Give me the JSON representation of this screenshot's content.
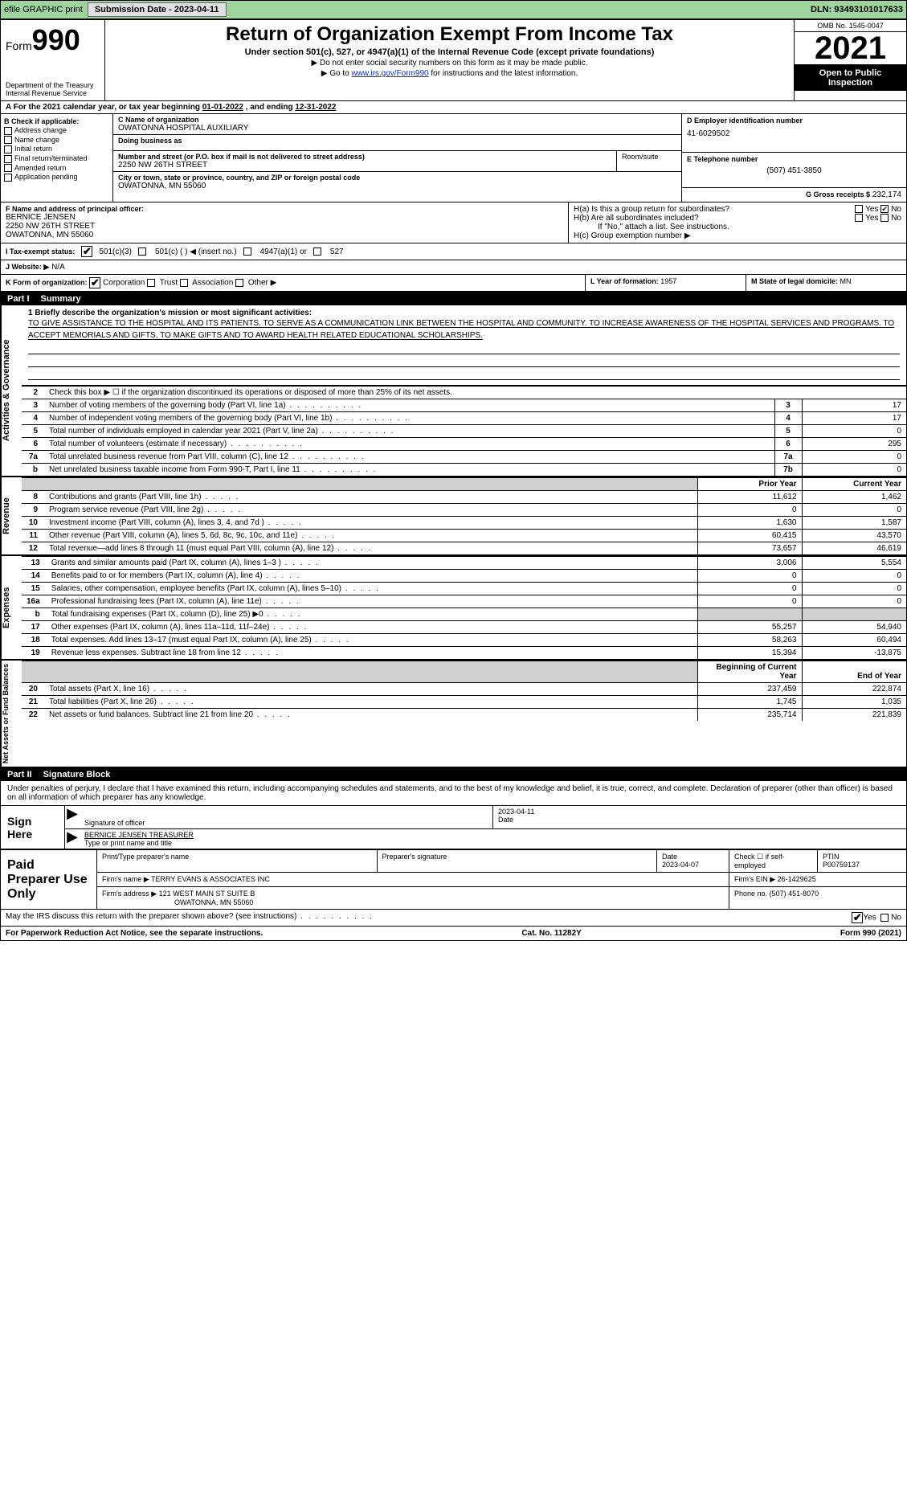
{
  "topbar": {
    "efile_label": "efile GRAPHIC print",
    "submission_label": "Submission Date - 2023-04-11",
    "dln_label": "DLN: 93493101017633"
  },
  "header": {
    "form_prefix": "Form",
    "form_number": "990",
    "dept": "Department of the Treasury",
    "irs": "Internal Revenue Service",
    "title": "Return of Organization Exempt From Income Tax",
    "subtitle": "Under section 501(c), 527, or 4947(a)(1) of the Internal Revenue Code (except private foundations)",
    "note1": "▶ Do not enter social security numbers on this form as it may be made public.",
    "note2_pre": "▶ Go to ",
    "note2_link": "www.irs.gov/Form990",
    "note2_post": " for instructions and the latest information.",
    "omb": "OMB No. 1545-0047",
    "year": "2021",
    "open": "Open to Public Inspection"
  },
  "period": {
    "label_a": "A For the 2021 calendar year, or tax year beginning ",
    "begin": "01-01-2022",
    "mid": "  , and ending ",
    "end": "12-31-2022"
  },
  "boxB": {
    "heading": "B Check if applicable:",
    "addr_change": "Address change",
    "name_change": "Name change",
    "initial": "Initial return",
    "final": "Final return/terminated",
    "amended": "Amended return",
    "app_pending": "Application pending"
  },
  "boxC": {
    "name_label": "C Name of organization",
    "name": "OWATONNA HOSPITAL AUXILIARY",
    "dba_label": "Doing business as",
    "street_label": "Number and street (or P.O. box if mail is not delivered to street address)",
    "street": "2250 NW 26TH STREET",
    "room_label": "Room/suite",
    "city_label": "City or town, state or province, country, and ZIP or foreign postal code",
    "city": "OWATONNA, MN  55060"
  },
  "boxD": {
    "ein_label": "D Employer identification number",
    "ein": "41-6029502",
    "tel_label": "E Telephone number",
    "tel": "(507) 451-3850",
    "gross_label": "G Gross receipts $",
    "gross": "232,174"
  },
  "boxF": {
    "label": "F Name and address of principal officer:",
    "name": "BERNICE JENSEN",
    "street": "2250 NW 26TH STREET",
    "city": "OWATONNA, MN  55060"
  },
  "boxH": {
    "ha_label": "H(a)  Is this a group return for subordinates?",
    "hb_label": "H(b)  Are all subordinates included?",
    "h_note": "If \"No,\" attach a list. See instructions.",
    "hc_label": "H(c)  Group exemption number ▶",
    "yes": "Yes",
    "no": "No"
  },
  "boxI": {
    "label": "I  Tax-exempt status:",
    "o501c3": "501(c)(3)",
    "o501c": "501(c) (   ) ◀ (insert no.)",
    "o4947": "4947(a)(1) or",
    "o527": "527"
  },
  "boxJ": {
    "label": "J  Website: ▶",
    "value": "  N/A"
  },
  "boxK": {
    "label": "K Form of organization:",
    "corp": "Corporation",
    "trust": "Trust",
    "assoc": "Association",
    "other": "Other ▶"
  },
  "boxL": {
    "label": "L Year of formation: ",
    "value": "1957"
  },
  "boxM": {
    "label": "M State of legal domicile: ",
    "value": "MN"
  },
  "partI": {
    "num": "Part I",
    "title": "Summary"
  },
  "mission": {
    "q1": "1  Briefly describe the organization's mission or most significant activities:",
    "text": "TO GIVE ASSISTANCE TO THE HOSPITAL AND ITS PATIENTS. TO SERVE AS A COMMUNICATION LINK BETWEEN THE HOSPITAL AND COMMUNITY. TO INCREASE AWARENESS OF THE HOSPITAL SERVICES AND PROGRAMS. TO ACCEPT MEMORIALS AND GIFTS, TO MAKE GIFTS AND TO AWARD HEALTH RELATED EDUCATIONAL SCHOLARSHIPS."
  },
  "gov_lines": {
    "l2": "Check this box ▶ ☐  if the organization discontinued its operations or disposed of more than 25% of its net assets.",
    "rows": [
      {
        "n": "3",
        "t": "Number of voting members of the governing body (Part VI, line 1a)",
        "b": "3",
        "v": "17"
      },
      {
        "n": "4",
        "t": "Number of independent voting members of the governing body (Part VI, line 1b)",
        "b": "4",
        "v": "17"
      },
      {
        "n": "5",
        "t": "Total number of individuals employed in calendar year 2021 (Part V, line 2a)",
        "b": "5",
        "v": "0"
      },
      {
        "n": "6",
        "t": "Total number of volunteers (estimate if necessary)",
        "b": "6",
        "v": "295"
      },
      {
        "n": "7a",
        "t": "Total unrelated business revenue from Part VIII, column (C), line 12",
        "b": "7a",
        "v": "0"
      },
      {
        "n": "b",
        "t": "Net unrelated business taxable income from Form 990-T, Part I, line 11",
        "b": "7b",
        "v": "0"
      }
    ]
  },
  "cols": {
    "prior": "Prior Year",
    "current": "Current Year",
    "begin": "Beginning of Current Year",
    "end": "End of Year"
  },
  "revenue": [
    {
      "n": "8",
      "t": "Contributions and grants (Part VIII, line 1h)",
      "p": "11,612",
      "c": "1,462"
    },
    {
      "n": "9",
      "t": "Program service revenue (Part VIII, line 2g)",
      "p": "0",
      "c": "0"
    },
    {
      "n": "10",
      "t": "Investment income (Part VIII, column (A), lines 3, 4, and 7d )",
      "p": "1,630",
      "c": "1,587"
    },
    {
      "n": "11",
      "t": "Other revenue (Part VIII, column (A), lines 5, 6d, 8c, 9c, 10c, and 11e)",
      "p": "60,415",
      "c": "43,570"
    },
    {
      "n": "12",
      "t": "Total revenue—add lines 8 through 11 (must equal Part VIII, column (A), line 12)",
      "p": "73,657",
      "c": "46,619"
    }
  ],
  "expenses": [
    {
      "n": "13",
      "t": "Grants and similar amounts paid (Part IX, column (A), lines 1–3 )",
      "p": "3,006",
      "c": "5,554"
    },
    {
      "n": "14",
      "t": "Benefits paid to or for members (Part IX, column (A), line 4)",
      "p": "0",
      "c": "0"
    },
    {
      "n": "15",
      "t": "Salaries, other compensation, employee benefits (Part IX, column (A), lines 5–10)",
      "p": "0",
      "c": "0"
    },
    {
      "n": "16a",
      "t": "Professional fundraising fees (Part IX, column (A), line 11e)",
      "p": "0",
      "c": "0"
    },
    {
      "n": "b",
      "t": "Total fundraising expenses (Part IX, column (D), line 25) ▶0",
      "p": "",
      "c": "",
      "shaded": true
    },
    {
      "n": "17",
      "t": "Other expenses (Part IX, column (A), lines 11a–11d, 11f–24e)",
      "p": "55,257",
      "c": "54,940"
    },
    {
      "n": "18",
      "t": "Total expenses. Add lines 13–17 (must equal Part IX, column (A), line 25)",
      "p": "58,263",
      "c": "60,494"
    },
    {
      "n": "19",
      "t": "Revenue less expenses. Subtract line 18 from line 12",
      "p": "15,394",
      "c": "-13,875"
    }
  ],
  "netassets": [
    {
      "n": "20",
      "t": "Total assets (Part X, line 16)",
      "p": "237,459",
      "c": "222,874"
    },
    {
      "n": "21",
      "t": "Total liabilities (Part X, line 26)",
      "p": "1,745",
      "c": "1,035"
    },
    {
      "n": "22",
      "t": "Net assets or fund balances. Subtract line 21 from line 20",
      "p": "235,714",
      "c": "221,839"
    }
  ],
  "side": {
    "gov": "Activities & Governance",
    "rev": "Revenue",
    "exp": "Expenses",
    "net": "Net Assets or Fund Balances"
  },
  "partII": {
    "num": "Part II",
    "title": "Signature Block"
  },
  "penalties": "Under penalties of perjury, I declare that I have examined this return, including accompanying schedules and statements, and to the best of my knowledge and belief, it is true, correct, and complete. Declaration of preparer (other than officer) is based on all information of which preparer has any knowledge.",
  "sign": {
    "here": "Sign Here",
    "sig_label": "Signature of officer",
    "date_label": "Date",
    "date": "2023-04-11",
    "name": "BERNICE JENSEN  TREASURER",
    "name_label": "Type or print name and title"
  },
  "prep": {
    "label": "Paid Preparer Use Only",
    "print_label": "Print/Type preparer's name",
    "sig_label": "Preparer's signature",
    "date_label": "Date",
    "date": "2023-04-07",
    "check_label": "Check ☐ if self-employed",
    "ptin_label": "PTIN",
    "ptin": "P00759137",
    "firm_name_label": "Firm's name    ▶",
    "firm_name": "TERRY EVANS & ASSOCIATES INC",
    "firm_ein_label": "Firm's EIN ▶",
    "firm_ein": "26-1429625",
    "firm_addr_label": "Firm's address ▶",
    "firm_addr1": "121 WEST MAIN ST SUITE B",
    "firm_addr2": "OWATONNA, MN  55060",
    "phone_label": "Phone no.",
    "phone": "(507) 451-8070"
  },
  "discuss": {
    "q": "May the IRS discuss this return with the preparer shown above? (see instructions)",
    "yes": "Yes",
    "no": "No"
  },
  "footer": {
    "pra": "For Paperwork Reduction Act Notice, see the separate instructions.",
    "cat": "Cat. No. 11282Y",
    "form": "Form 990 (2021)"
  }
}
